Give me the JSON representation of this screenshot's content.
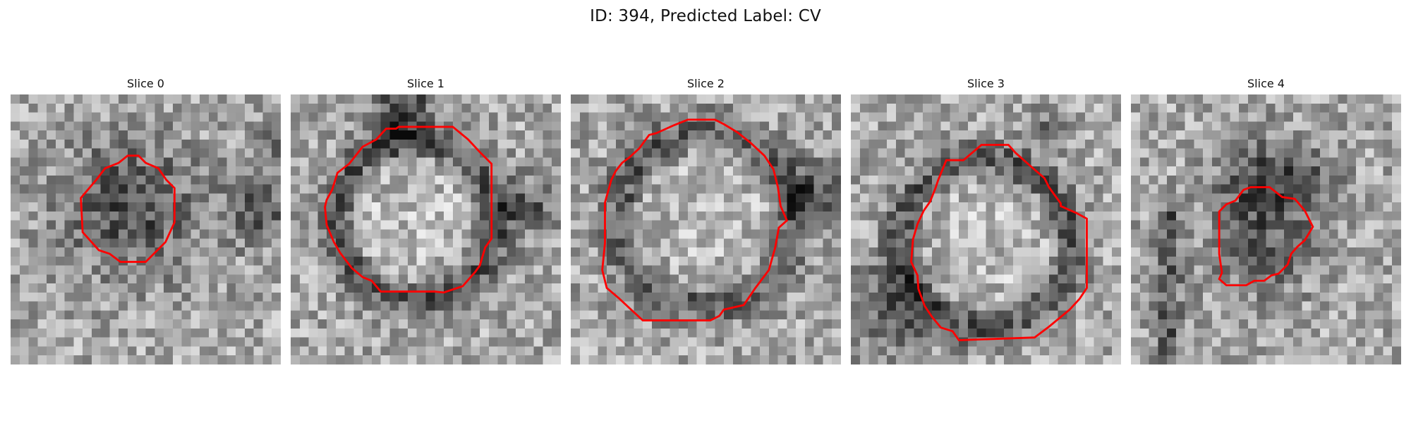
{
  "figure": {
    "title": "ID: 394, Predicted Label: CV"
  },
  "panels": [
    {
      "title": "Slice 0"
    },
    {
      "title": "Slice 1"
    },
    {
      "title": "Slice 2"
    },
    {
      "title": "Slice 3"
    },
    {
      "title": "Slice 4"
    }
  ],
  "colors": {
    "contour": "#ff0000",
    "background": "#ffffff"
  }
}
